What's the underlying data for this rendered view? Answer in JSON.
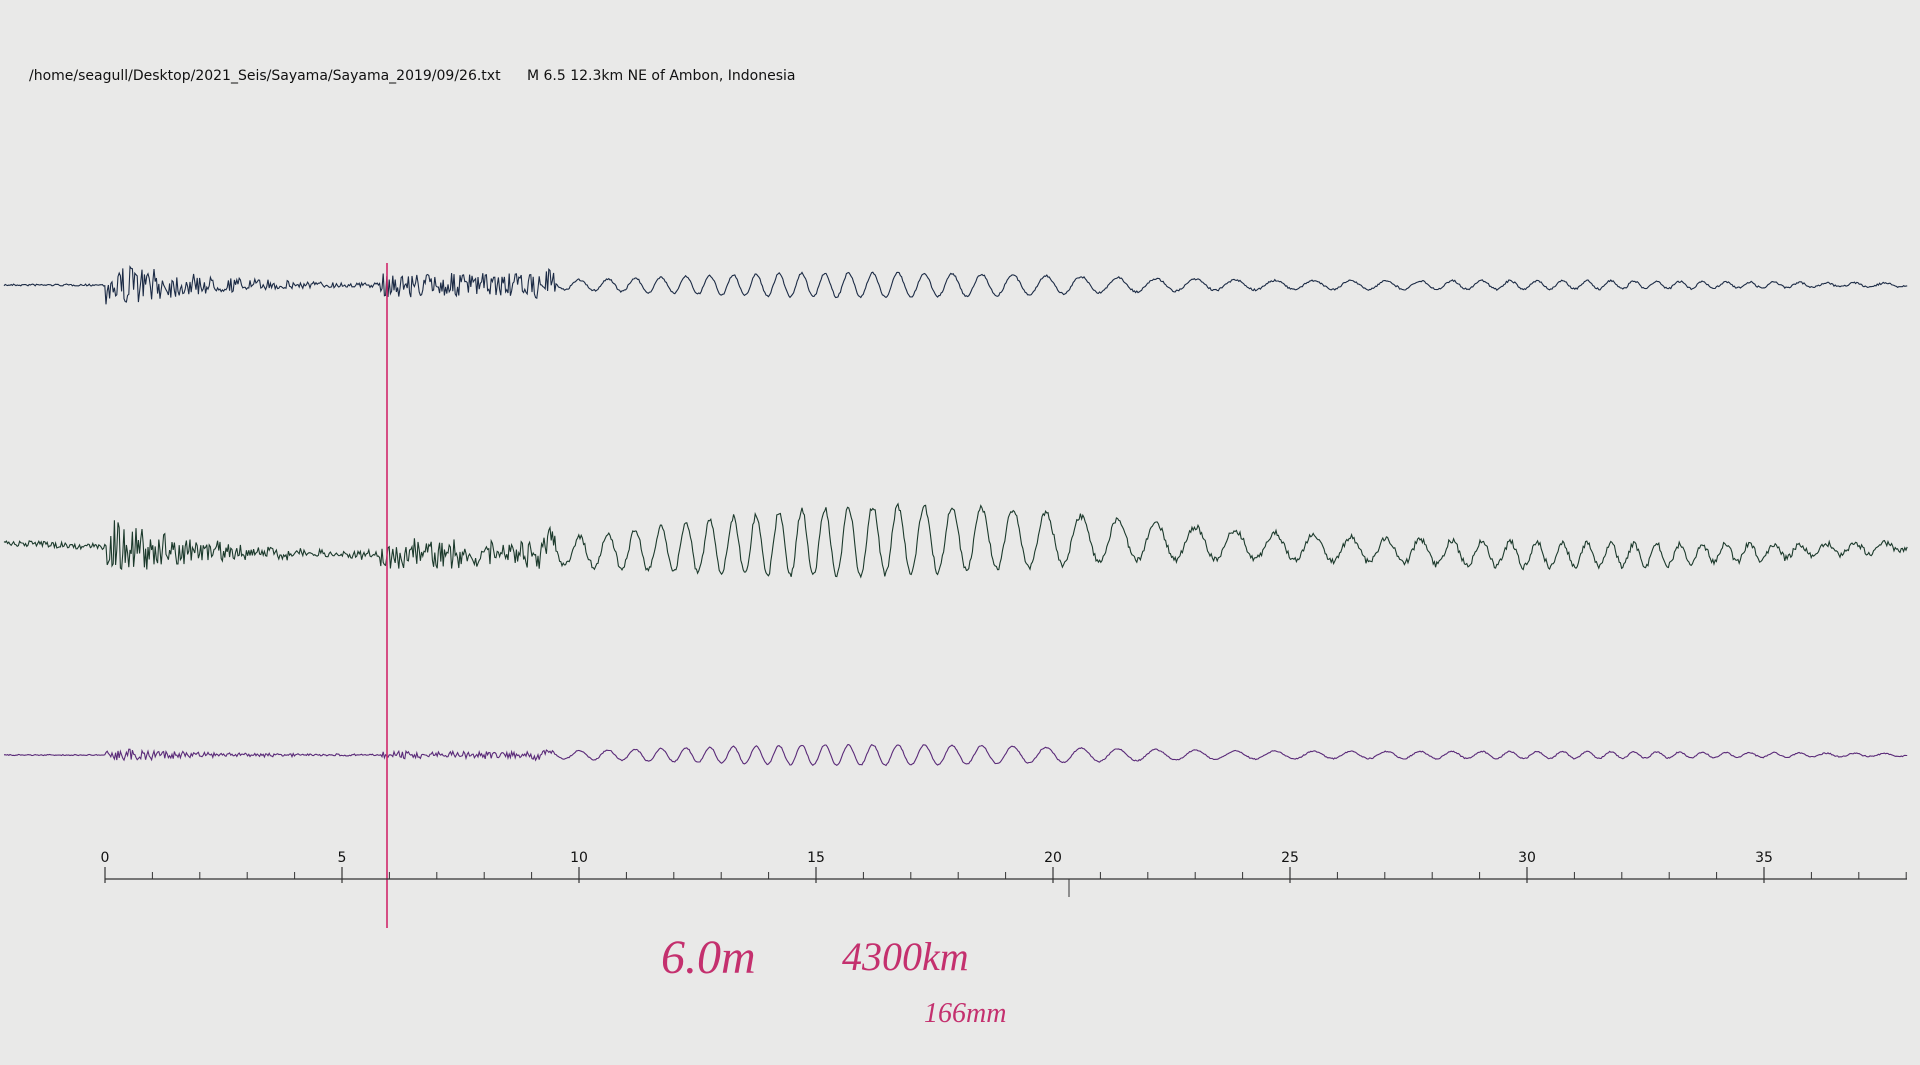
{
  "header": {
    "file": "/home/seagull/Desktop/2021_Seis/Sayama/Sayama_2019/09/26.txt",
    "event": "M 6.5 12.3km NE of Ambon, Indonesia"
  },
  "axis": {
    "ticks": [
      0,
      5,
      10,
      15,
      20,
      25,
      30,
      35
    ]
  },
  "notes": {
    "magnitude": "6.0m",
    "distance": "4300km",
    "length": "166mm"
  }
}
